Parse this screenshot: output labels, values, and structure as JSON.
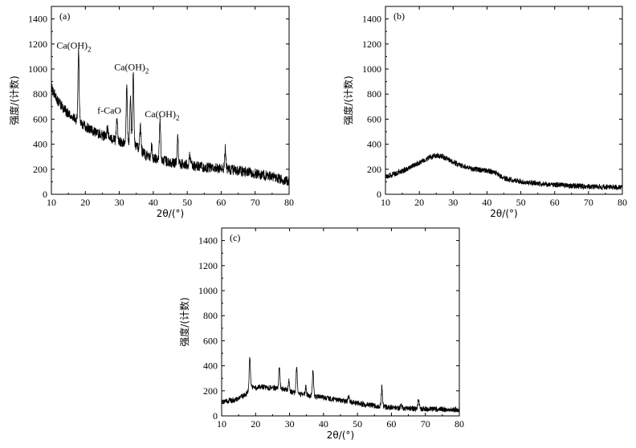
{
  "chart_data": [
    {
      "id": "a",
      "type": "line",
      "panel_label": "(a)",
      "xlabel": "2θ/(°)",
      "ylabel": "强度/(计数)",
      "xlim": [
        10,
        80
      ],
      "ylim": [
        0,
        1500
      ],
      "xticks": [
        "10",
        "20",
        "30",
        "40",
        "50",
        "60",
        "70",
        "80"
      ],
      "yticks": [
        "0",
        "200",
        "400",
        "600",
        "800",
        "1000",
        "1200",
        "1400"
      ],
      "grid": false,
      "baseline": [
        [
          10,
          850
        ],
        [
          12,
          740
        ],
        [
          15,
          640
        ],
        [
          20,
          540
        ],
        [
          25,
          470
        ],
        [
          30,
          420
        ],
        [
          35,
          380
        ],
        [
          38,
          310
        ],
        [
          40,
          290
        ],
        [
          45,
          255
        ],
        [
          50,
          235
        ],
        [
          55,
          215
        ],
        [
          60,
          205
        ],
        [
          65,
          190
        ],
        [
          70,
          165
        ],
        [
          75,
          140
        ],
        [
          80,
          100
        ]
      ],
      "peaks": [
        {
          "x": 18.0,
          "y": 1130
        },
        {
          "x": 26.5,
          "y": 530
        },
        {
          "x": 29.3,
          "y": 610
        },
        {
          "x": 32.2,
          "y": 880
        },
        {
          "x": 33.3,
          "y": 760
        },
        {
          "x": 34.1,
          "y": 960
        },
        {
          "x": 36.2,
          "y": 550
        },
        {
          "x": 39.5,
          "y": 390
        },
        {
          "x": 42.0,
          "y": 590
        },
        {
          "x": 47.2,
          "y": 460
        },
        {
          "x": 50.8,
          "y": 320
        },
        {
          "x": 61.2,
          "y": 360
        }
      ],
      "noise": 42,
      "annotations": [
        {
          "text": "Ca(OH)",
          "sub": "2",
          "x": 11.5,
          "y": 1165
        },
        {
          "text": "f-CaO",
          "sub": "",
          "x": 23.5,
          "y": 645
        },
        {
          "text": "Ca(OH)",
          "sub": "2",
          "x": 28.5,
          "y": 990
        },
        {
          "text": "Ca(OH)",
          "sub": "2",
          "x": 37.5,
          "y": 615
        }
      ]
    },
    {
      "id": "b",
      "type": "line",
      "panel_label": "(b)",
      "xlabel": "2θ/(°)",
      "ylabel": "强度/(计数)",
      "xlim": [
        10,
        80
      ],
      "ylim": [
        0,
        1500
      ],
      "xticks": [
        "10",
        "20",
        "30",
        "40",
        "50",
        "60",
        "70",
        "80"
      ],
      "yticks": [
        "0",
        "200",
        "400",
        "600",
        "800",
        "1000",
        "1200",
        "1400"
      ],
      "grid": false,
      "baseline": [
        [
          10,
          140
        ],
        [
          13,
          165
        ],
        [
          16,
          200
        ],
        [
          20,
          255
        ],
        [
          23,
          295
        ],
        [
          25,
          310
        ],
        [
          27,
          300
        ],
        [
          30,
          255
        ],
        [
          35,
          205
        ],
        [
          40,
          190
        ],
        [
          43,
          165
        ],
        [
          45,
          130
        ],
        [
          50,
          100
        ],
        [
          55,
          85
        ],
        [
          60,
          75
        ],
        [
          70,
          60
        ],
        [
          80,
          55
        ]
      ],
      "peaks": [],
      "noise": 22,
      "annotations": []
    },
    {
      "id": "c",
      "type": "line",
      "panel_label": "(c)",
      "xlabel": "2θ/(°)",
      "ylabel": "强度/(计数)",
      "xlim": [
        10,
        80
      ],
      "ylim": [
        0,
        1500
      ],
      "xticks": [
        "10",
        "20",
        "30",
        "40",
        "50",
        "60",
        "70",
        "80"
      ],
      "yticks": [
        "0",
        "200",
        "400",
        "600",
        "800",
        "1000",
        "1200",
        "1400"
      ],
      "grid": false,
      "baseline": [
        [
          10,
          110
        ],
        [
          14,
          130
        ],
        [
          17,
          165
        ],
        [
          18.5,
          225
        ],
        [
          22,
          230
        ],
        [
          28,
          215
        ],
        [
          32,
          180
        ],
        [
          36,
          160
        ],
        [
          40,
          145
        ],
        [
          45,
          125
        ],
        [
          50,
          100
        ],
        [
          55,
          80
        ],
        [
          60,
          65
        ],
        [
          70,
          55
        ],
        [
          80,
          50
        ]
      ],
      "peaks": [
        {
          "x": 18.3,
          "y": 470
        },
        {
          "x": 27.0,
          "y": 390
        },
        {
          "x": 29.8,
          "y": 280
        },
        {
          "x": 32.1,
          "y": 400
        },
        {
          "x": 34.8,
          "y": 230
        },
        {
          "x": 36.9,
          "y": 360
        },
        {
          "x": 47.4,
          "y": 160
        },
        {
          "x": 57.2,
          "y": 230
        },
        {
          "x": 62.8,
          "y": 100
        },
        {
          "x": 68.0,
          "y": 140
        }
      ],
      "noise": 22,
      "annotations": []
    }
  ]
}
